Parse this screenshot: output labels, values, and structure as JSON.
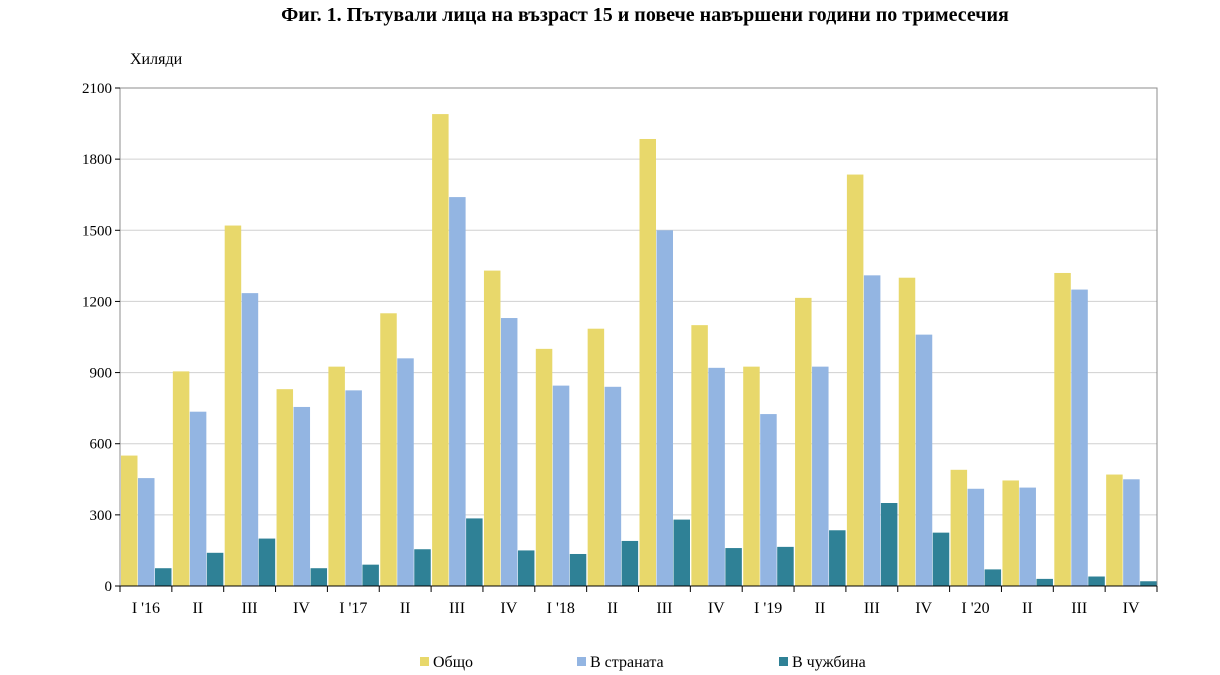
{
  "chart_data": {
    "type": "bar",
    "title": "Фиг. 1. Пътували лица на възраст 15 и повече навършени години по тримесечия",
    "ylabel": "Хиляди",
    "xlabel": "",
    "ylim": [
      0,
      2100
    ],
    "yticks": [
      0,
      300,
      600,
      900,
      1200,
      1500,
      1800,
      2100
    ],
    "grid": true,
    "legend_position": "bottom",
    "categories": [
      "I '16",
      "II",
      "III",
      "IV",
      "I '17",
      "II",
      "III",
      "IV",
      "I '18",
      "II",
      "III",
      "IV",
      "I '19",
      "II",
      "III",
      "IV",
      "I '20",
      "II",
      "III",
      "IV"
    ],
    "series": [
      {
        "name": "Общо",
        "color": "#e8d86b",
        "values": [
          550,
          905,
          1520,
          830,
          925,
          1150,
          1990,
          1330,
          1000,
          1085,
          1885,
          1100,
          925,
          1215,
          1735,
          1300,
          490,
          445,
          1320,
          470
        ]
      },
      {
        "name": "В страната",
        "color": "#93b5e2",
        "values": [
          455,
          735,
          1235,
          755,
          825,
          960,
          1640,
          1130,
          845,
          840,
          1500,
          920,
          725,
          925,
          1310,
          1060,
          410,
          415,
          1250,
          450
        ]
      },
      {
        "name": "В чужбина",
        "color": "#2f8196",
        "values": [
          75,
          140,
          200,
          75,
          90,
          155,
          285,
          150,
          135,
          190,
          280,
          160,
          165,
          235,
          350,
          225,
          70,
          30,
          40,
          20
        ]
      }
    ]
  }
}
